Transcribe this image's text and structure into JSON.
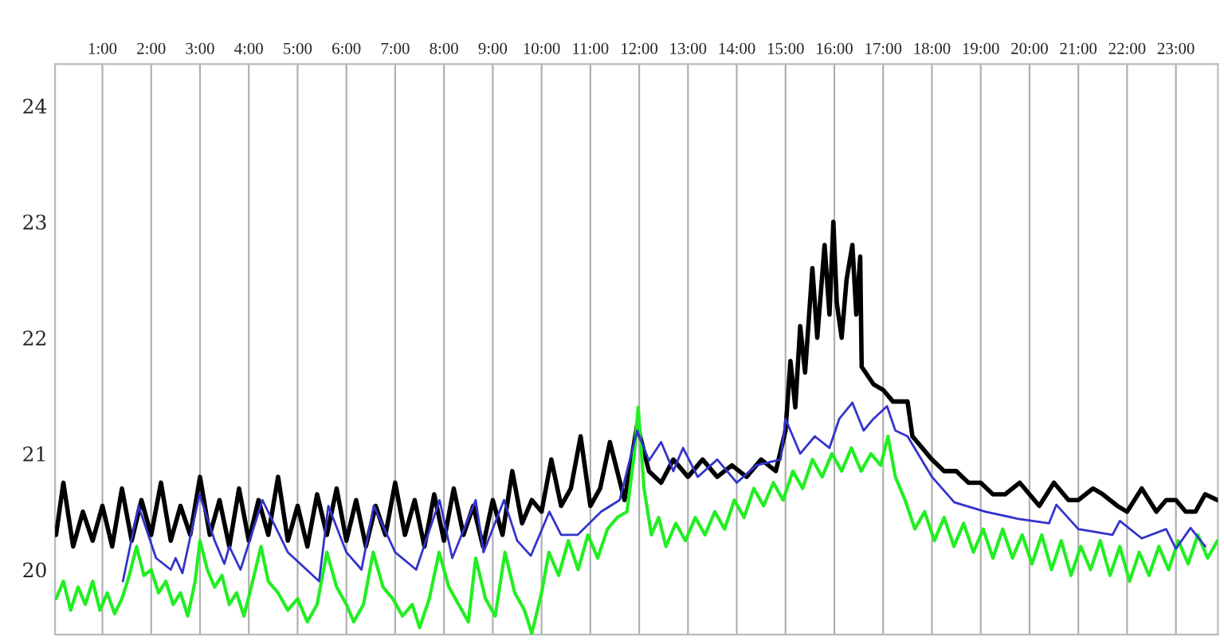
{
  "chart_data": {
    "type": "line",
    "xlim": [
      0.03,
      23.86
    ],
    "ylim": [
      19.44,
      24.36
    ],
    "xticks": [
      {
        "value": 1,
        "label": "1:00"
      },
      {
        "value": 2,
        "label": "2:00"
      },
      {
        "value": 3,
        "label": "3:00"
      },
      {
        "value": 4,
        "label": "4:00"
      },
      {
        "value": 5,
        "label": "5:00"
      },
      {
        "value": 6,
        "label": "6:00"
      },
      {
        "value": 7,
        "label": "7:00"
      },
      {
        "value": 8,
        "label": "8:00"
      },
      {
        "value": 9,
        "label": "9:00"
      },
      {
        "value": 10,
        "label": "10:00"
      },
      {
        "value": 11,
        "label": "11:00"
      },
      {
        "value": 12,
        "label": "12:00"
      },
      {
        "value": 13,
        "label": "13:00"
      },
      {
        "value": 14,
        "label": "14:00"
      },
      {
        "value": 15,
        "label": "15:00"
      },
      {
        "value": 16,
        "label": "16:00"
      },
      {
        "value": 17,
        "label": "17:00"
      },
      {
        "value": 18,
        "label": "18:00"
      },
      {
        "value": 19,
        "label": "19:00"
      },
      {
        "value": 20,
        "label": "20:00"
      },
      {
        "value": 21,
        "label": "21:00"
      },
      {
        "value": 22,
        "label": "22:00"
      },
      {
        "value": 23,
        "label": "23:00"
      }
    ],
    "yticks": [
      20,
      21,
      22,
      23,
      24
    ],
    "grid": "x",
    "legend": false,
    "marker": "none",
    "line_style": "solid",
    "series": [
      {
        "color": "#000000",
        "x": [
          0.05,
          0.2,
          0.4,
          0.6,
          0.8,
          1.0,
          1.2,
          1.4,
          1.6,
          1.8,
          2.0,
          2.2,
          2.4,
          2.6,
          2.8,
          3.0,
          3.2,
          3.4,
          3.6,
          3.8,
          4.0,
          4.2,
          4.4,
          4.6,
          4.8,
          5.0,
          5.2,
          5.4,
          5.6,
          5.8,
          6.0,
          6.2,
          6.4,
          6.6,
          6.8,
          7.0,
          7.2,
          7.4,
          7.6,
          7.8,
          8.0,
          8.2,
          8.4,
          8.6,
          8.8,
          9.0,
          9.2,
          9.4,
          9.6,
          9.8,
          10.0,
          10.2,
          10.4,
          10.6,
          10.8,
          11.0,
          11.2,
          11.4,
          11.7,
          11.96,
          12.2,
          12.45,
          12.7,
          13.0,
          13.3,
          13.6,
          13.9,
          14.2,
          14.5,
          14.8,
          15.0,
          15.1,
          15.2,
          15.3,
          15.4,
          15.55,
          15.65,
          15.8,
          15.9,
          15.98,
          16.05,
          16.15,
          16.25,
          16.37,
          16.45,
          16.53,
          16.56,
          16.8,
          17.0,
          17.2,
          17.5,
          17.6,
          17.8,
          18.0,
          18.25,
          18.5,
          18.75,
          19.0,
          19.25,
          19.5,
          19.8,
          20.2,
          20.5,
          20.8,
          21.0,
          21.3,
          21.5,
          21.8,
          22.0,
          22.3,
          22.6,
          22.8,
          23.0,
          23.2,
          23.4,
          23.6,
          23.85
        ],
        "values": [
          20.3,
          20.75,
          20.2,
          20.5,
          20.25,
          20.55,
          20.2,
          20.7,
          20.25,
          20.6,
          20.3,
          20.75,
          20.25,
          20.55,
          20.3,
          20.8,
          20.3,
          20.6,
          20.2,
          20.7,
          20.25,
          20.6,
          20.3,
          20.8,
          20.25,
          20.55,
          20.2,
          20.65,
          20.3,
          20.7,
          20.25,
          20.6,
          20.2,
          20.55,
          20.3,
          20.75,
          20.3,
          20.6,
          20.2,
          20.65,
          20.25,
          20.7,
          20.3,
          20.55,
          20.2,
          20.6,
          20.3,
          20.85,
          20.4,
          20.6,
          20.5,
          20.95,
          20.55,
          20.7,
          21.15,
          20.55,
          20.7,
          21.1,
          20.6,
          21.25,
          20.85,
          20.75,
          20.95,
          20.8,
          20.95,
          20.8,
          20.9,
          20.8,
          20.95,
          20.85,
          21.2,
          21.8,
          21.4,
          22.1,
          21.7,
          22.6,
          22.0,
          22.8,
          22.2,
          23.0,
          22.3,
          22.0,
          22.5,
          22.8,
          22.2,
          22.7,
          21.75,
          21.6,
          21.55,
          21.45,
          21.45,
          21.15,
          21.05,
          20.95,
          20.85,
          20.85,
          20.75,
          20.75,
          20.65,
          20.65,
          20.75,
          20.55,
          20.75,
          20.6,
          20.6,
          20.7,
          20.65,
          20.55,
          20.5,
          20.7,
          20.5,
          20.6,
          20.6,
          20.5,
          20.5,
          20.65,
          20.6
        ]
      },
      {
        "color": "#22ee22",
        "x": [
          0.05,
          0.2,
          0.35,
          0.5,
          0.65,
          0.8,
          0.95,
          1.1,
          1.25,
          1.4,
          1.55,
          1.7,
          1.85,
          2.0,
          2.15,
          2.3,
          2.45,
          2.6,
          2.75,
          2.9,
          3.0,
          3.15,
          3.3,
          3.45,
          3.6,
          3.75,
          3.9,
          4.05,
          4.25,
          4.4,
          4.6,
          4.8,
          5.0,
          5.2,
          5.4,
          5.6,
          5.8,
          6.0,
          6.15,
          6.35,
          6.55,
          6.75,
          6.95,
          7.15,
          7.35,
          7.5,
          7.7,
          7.9,
          8.1,
          8.3,
          8.5,
          8.65,
          8.85,
          9.05,
          9.25,
          9.45,
          9.65,
          9.8,
          10.0,
          10.15,
          10.35,
          10.55,
          10.75,
          10.95,
          11.15,
          11.35,
          11.55,
          11.75,
          11.9,
          11.98,
          12.1,
          12.25,
          12.4,
          12.55,
          12.75,
          12.95,
          13.15,
          13.35,
          13.55,
          13.75,
          13.95,
          14.15,
          14.35,
          14.55,
          14.75,
          14.95,
          15.15,
          15.35,
          15.55,
          15.75,
          15.95,
          16.15,
          16.35,
          16.55,
          16.75,
          16.95,
          17.1,
          17.25,
          17.45,
          17.65,
          17.85,
          18.05,
          18.25,
          18.45,
          18.65,
          18.85,
          19.05,
          19.25,
          19.45,
          19.65,
          19.85,
          20.05,
          20.25,
          20.45,
          20.65,
          20.85,
          21.05,
          21.25,
          21.45,
          21.65,
          21.85,
          22.05,
          22.25,
          22.45,
          22.65,
          22.85,
          23.05,
          23.25,
          23.45,
          23.65,
          23.85
        ],
        "values": [
          19.75,
          19.9,
          19.65,
          19.85,
          19.7,
          19.9,
          19.65,
          19.8,
          19.62,
          19.75,
          19.95,
          20.2,
          19.95,
          20.0,
          19.8,
          19.9,
          19.7,
          19.8,
          19.6,
          19.9,
          20.25,
          20.0,
          19.85,
          19.95,
          19.7,
          19.8,
          19.6,
          19.85,
          20.2,
          19.9,
          19.8,
          19.65,
          19.75,
          19.55,
          19.7,
          20.15,
          19.85,
          19.7,
          19.55,
          19.7,
          20.15,
          19.85,
          19.75,
          19.6,
          19.7,
          19.5,
          19.75,
          20.15,
          19.85,
          19.7,
          19.55,
          20.1,
          19.75,
          19.6,
          20.15,
          19.8,
          19.65,
          19.45,
          19.8,
          20.15,
          19.95,
          20.25,
          20.0,
          20.3,
          20.1,
          20.35,
          20.45,
          20.5,
          21.0,
          21.4,
          20.7,
          20.3,
          20.45,
          20.2,
          20.4,
          20.25,
          20.45,
          20.3,
          20.5,
          20.35,
          20.6,
          20.45,
          20.7,
          20.55,
          20.75,
          20.6,
          20.85,
          20.7,
          20.95,
          20.8,
          21.0,
          20.85,
          21.05,
          20.85,
          21.0,
          20.9,
          21.15,
          20.8,
          20.6,
          20.35,
          20.5,
          20.25,
          20.45,
          20.2,
          20.4,
          20.15,
          20.35,
          20.1,
          20.35,
          20.1,
          20.3,
          20.05,
          20.3,
          20.0,
          20.25,
          19.95,
          20.2,
          20.0,
          20.25,
          19.95,
          20.2,
          19.9,
          20.15,
          19.95,
          20.2,
          20.0,
          20.25,
          20.05,
          20.3,
          20.1,
          20.25
        ]
      },
      {
        "color": "#3333cc",
        "x": [
          1.42,
          1.74,
          2.1,
          2.4,
          2.5,
          2.64,
          2.99,
          3.3,
          3.5,
          3.6,
          3.83,
          4.28,
          4.8,
          5.44,
          5.63,
          6.0,
          6.31,
          6.56,
          7.0,
          7.43,
          7.91,
          8.17,
          8.65,
          8.81,
          9.23,
          9.5,
          9.78,
          10.16,
          10.4,
          10.74,
          11.22,
          11.6,
          11.96,
          12.2,
          12.45,
          12.7,
          12.9,
          13.2,
          13.6,
          14.0,
          14.4,
          14.9,
          15.0,
          15.3,
          15.6,
          15.9,
          16.1,
          16.37,
          16.6,
          16.8,
          17.08,
          17.25,
          17.5,
          18.0,
          18.46,
          19.1,
          19.75,
          20.4,
          20.55,
          21.0,
          21.7,
          21.85,
          22.3,
          22.8,
          23.0,
          23.3,
          23.6
        ],
        "values": [
          19.9,
          20.55,
          20.1,
          20.0,
          20.1,
          19.97,
          20.65,
          20.25,
          20.05,
          20.2,
          20.0,
          20.6,
          20.15,
          19.9,
          20.55,
          20.15,
          20.0,
          20.55,
          20.15,
          20.0,
          20.6,
          20.1,
          20.6,
          20.15,
          20.6,
          20.25,
          20.12,
          20.5,
          20.3,
          20.3,
          20.5,
          20.6,
          21.2,
          20.94,
          21.1,
          20.85,
          21.05,
          20.8,
          20.95,
          20.75,
          20.9,
          20.95,
          21.3,
          21.0,
          21.15,
          21.05,
          21.3,
          21.44,
          21.2,
          21.3,
          21.41,
          21.2,
          21.15,
          20.8,
          20.58,
          20.5,
          20.44,
          20.4,
          20.56,
          20.35,
          20.3,
          20.42,
          20.27,
          20.35,
          20.18,
          20.36,
          20.2
        ]
      }
    ]
  }
}
